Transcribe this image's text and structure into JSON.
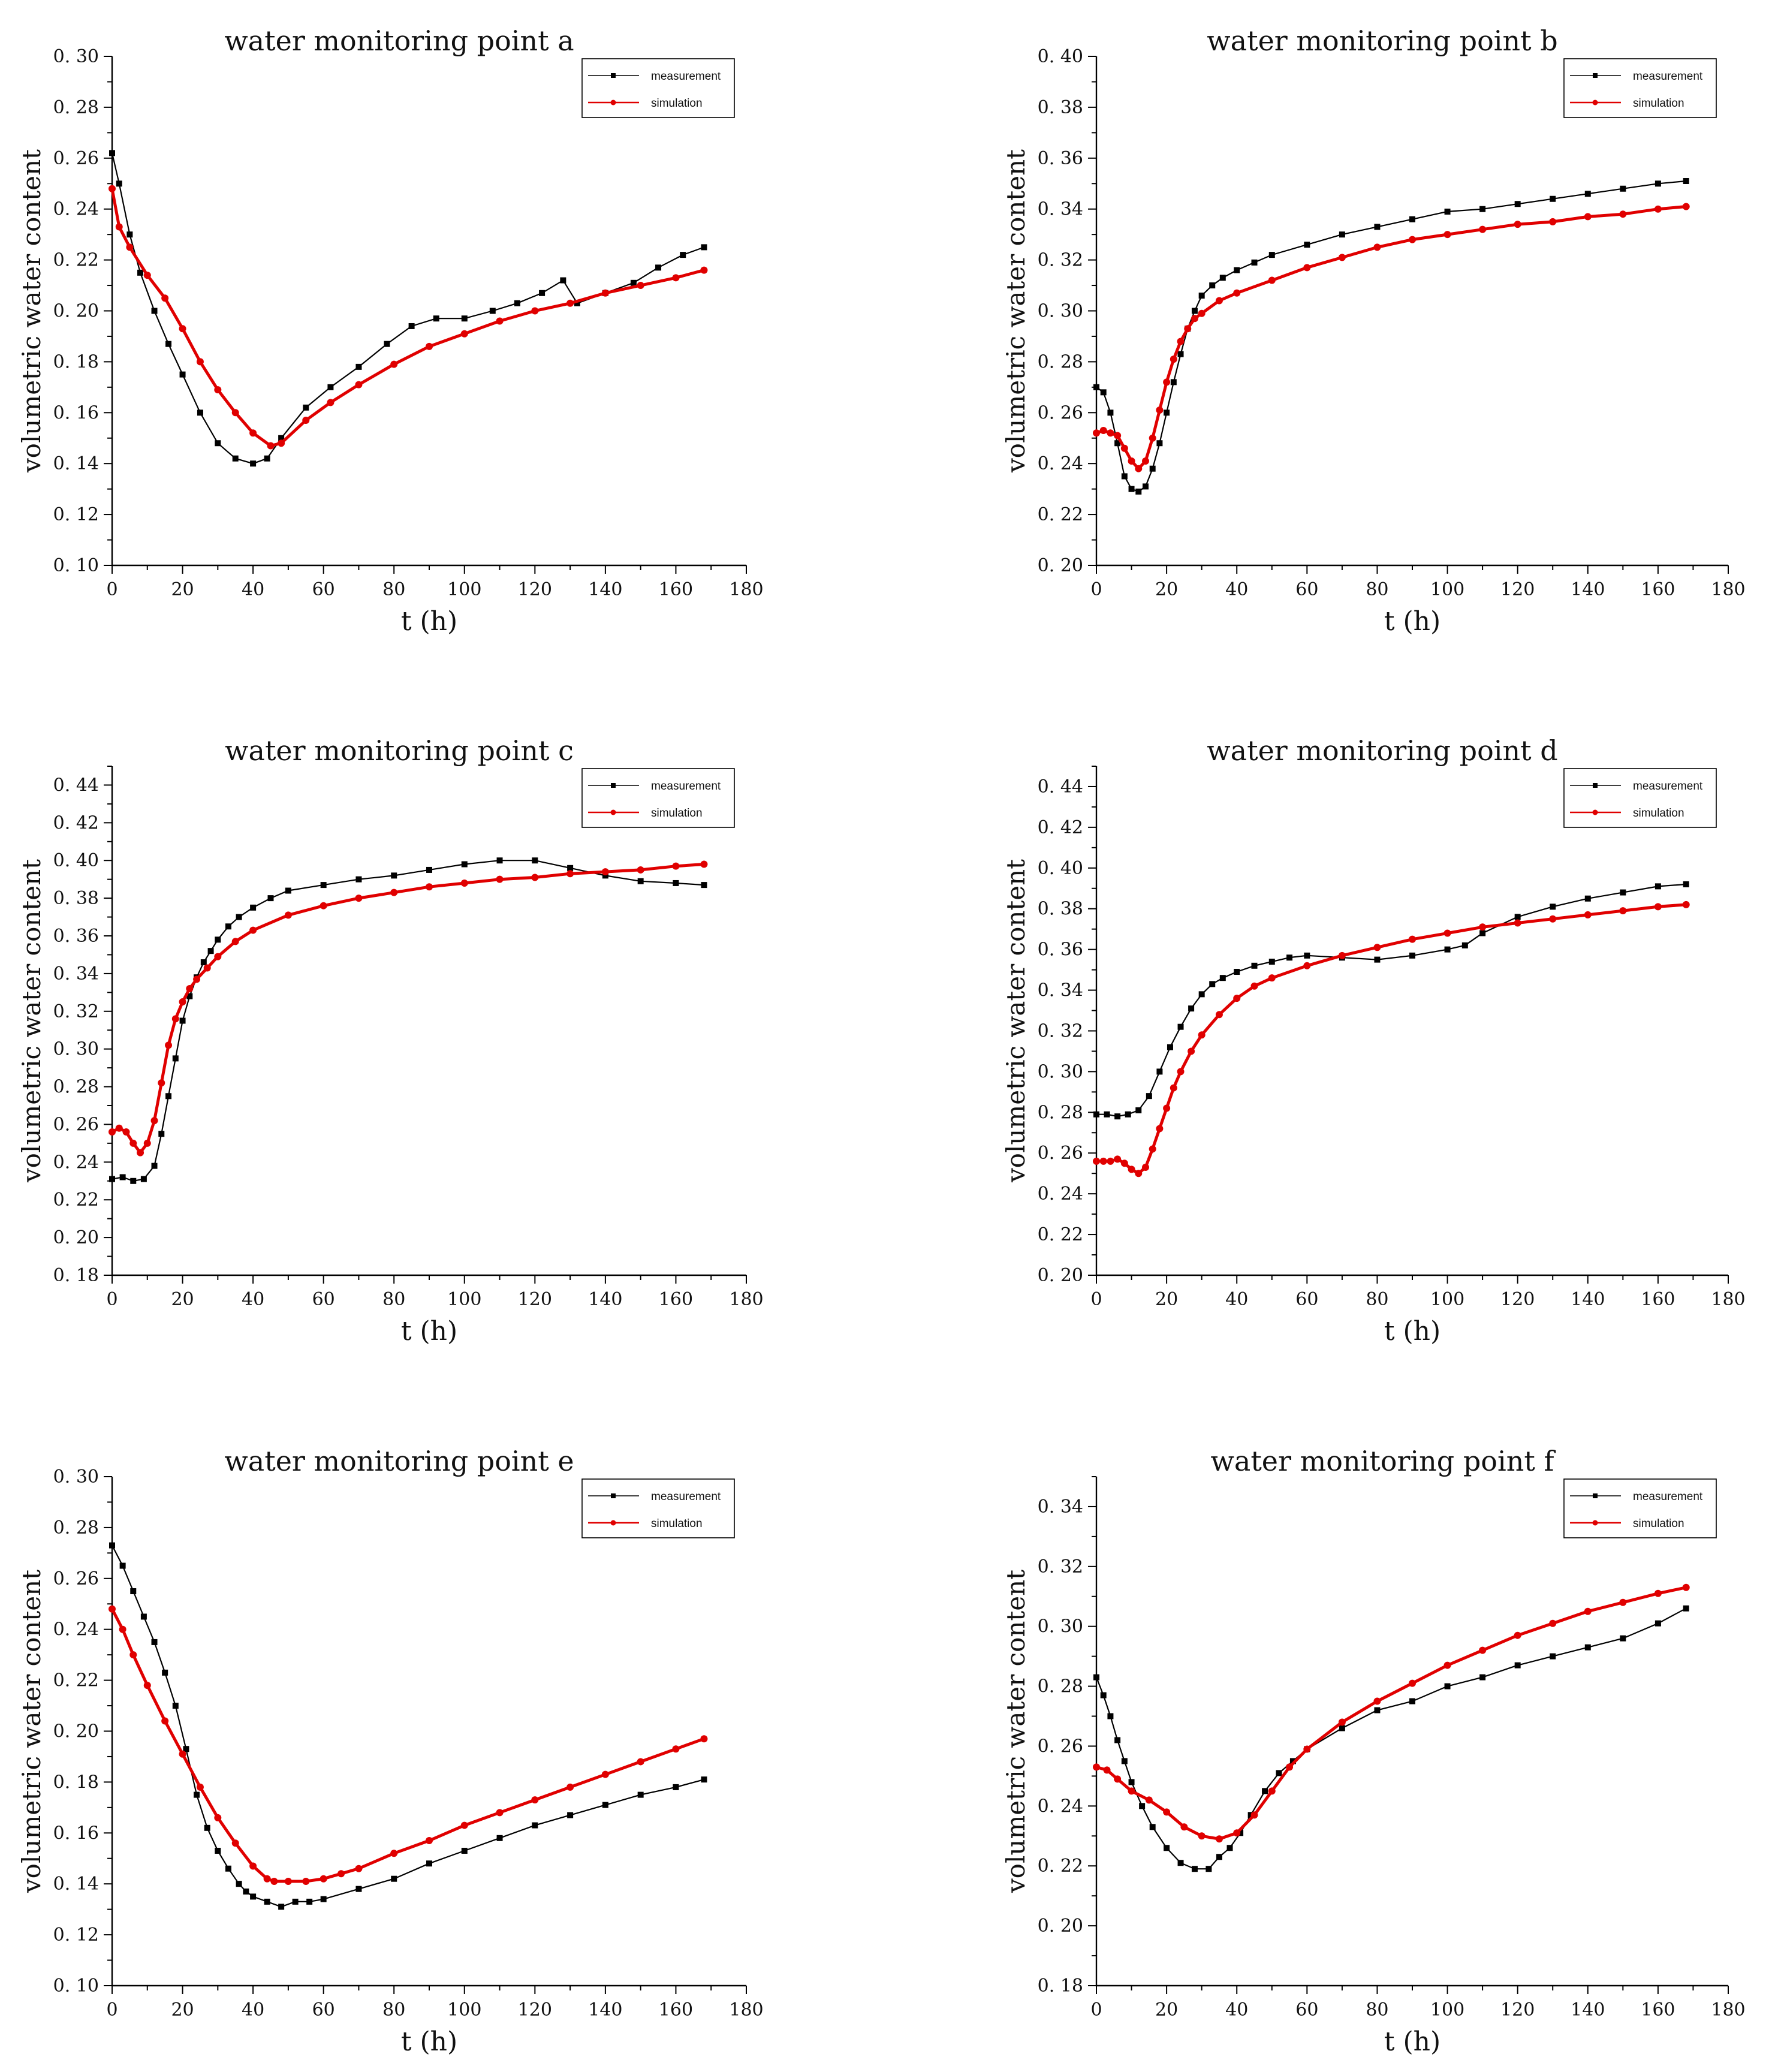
{
  "chart_data": [
    {
      "type": "line",
      "title": "water monitoring point a",
      "xlabel": "t (h)",
      "ylabel": "volumetric water content",
      "xlim": [
        0,
        180
      ],
      "ylim": [
        0.1,
        0.3
      ],
      "xticks": [
        "0",
        "20",
        "40",
        "60",
        "80",
        "100",
        "120",
        "140",
        "160",
        "180"
      ],
      "yticks": [
        "0. 10",
        "0. 12",
        "0. 14",
        "0. 16",
        "0. 18",
        "0. 20",
        "0. 22",
        "0. 24",
        "0. 26",
        "0. 28",
        "0. 30"
      ],
      "legend": "top-right",
      "series": [
        {
          "name": "measurement",
          "color": "#000000",
          "marker": "square",
          "x": [
            0,
            2,
            5,
            8,
            12,
            16,
            20,
            25,
            30,
            35,
            40,
            44,
            48,
            55,
            62,
            70,
            78,
            85,
            92,
            100,
            108,
            115,
            122,
            128,
            132,
            140,
            148,
            155,
            162,
            168
          ],
          "y": [
            0.262,
            0.25,
            0.23,
            0.215,
            0.2,
            0.187,
            0.175,
            0.16,
            0.148,
            0.142,
            0.14,
            0.142,
            0.15,
            0.162,
            0.17,
            0.178,
            0.187,
            0.194,
            0.197,
            0.197,
            0.2,
            0.203,
            0.207,
            0.212,
            0.203,
            0.207,
            0.211,
            0.217,
            0.222,
            0.225
          ]
        },
        {
          "name": "simulation",
          "color": "#e00000",
          "marker": "circle",
          "x": [
            0,
            2,
            5,
            10,
            15,
            20,
            25,
            30,
            35,
            40,
            45,
            48,
            55,
            62,
            70,
            80,
            90,
            100,
            110,
            120,
            130,
            140,
            150,
            160,
            168
          ],
          "y": [
            0.248,
            0.233,
            0.225,
            0.214,
            0.205,
            0.193,
            0.18,
            0.169,
            0.16,
            0.152,
            0.147,
            0.148,
            0.157,
            0.164,
            0.171,
            0.179,
            0.186,
            0.191,
            0.196,
            0.2,
            0.203,
            0.207,
            0.21,
            0.213,
            0.216
          ]
        }
      ]
    },
    {
      "type": "line",
      "title": "water monitoring point b",
      "xlabel": "t (h)",
      "ylabel": "volumetric water content",
      "xlim": [
        0,
        180
      ],
      "ylim": [
        0.2,
        0.4
      ],
      "xticks": [
        "0",
        "20",
        "40",
        "60",
        "80",
        "100",
        "120",
        "140",
        "160",
        "180"
      ],
      "yticks": [
        "0. 20",
        "0. 22",
        "0. 24",
        "0. 26",
        "0. 28",
        "0. 30",
        "0. 32",
        "0. 34",
        "0. 36",
        "0. 38",
        "0. 40"
      ],
      "legend": "top-right",
      "series": [
        {
          "name": "measurement",
          "color": "#000000",
          "marker": "square",
          "x": [
            0,
            2,
            4,
            6,
            8,
            10,
            12,
            14,
            16,
            18,
            20,
            22,
            24,
            26,
            28,
            30,
            33,
            36,
            40,
            45,
            50,
            60,
            70,
            80,
            90,
            100,
            110,
            120,
            130,
            140,
            150,
            160,
            168
          ],
          "y": [
            0.27,
            0.268,
            0.26,
            0.248,
            0.235,
            0.23,
            0.229,
            0.231,
            0.238,
            0.248,
            0.26,
            0.272,
            0.283,
            0.293,
            0.3,
            0.306,
            0.31,
            0.313,
            0.316,
            0.319,
            0.322,
            0.326,
            0.33,
            0.333,
            0.336,
            0.339,
            0.34,
            0.342,
            0.344,
            0.346,
            0.348,
            0.35,
            0.351
          ]
        },
        {
          "name": "simulation",
          "color": "#e00000",
          "marker": "circle",
          "x": [
            0,
            2,
            4,
            6,
            8,
            10,
            12,
            14,
            16,
            18,
            20,
            22,
            24,
            26,
            28,
            30,
            35,
            40,
            50,
            60,
            70,
            80,
            90,
            100,
            110,
            120,
            130,
            140,
            150,
            160,
            168
          ],
          "y": [
            0.252,
            0.253,
            0.252,
            0.251,
            0.246,
            0.241,
            0.238,
            0.241,
            0.25,
            0.261,
            0.272,
            0.281,
            0.288,
            0.293,
            0.297,
            0.299,
            0.304,
            0.307,
            0.312,
            0.317,
            0.321,
            0.325,
            0.328,
            0.33,
            0.332,
            0.334,
            0.335,
            0.337,
            0.338,
            0.34,
            0.341
          ]
        }
      ]
    },
    {
      "type": "line",
      "title": "water monitoring point c",
      "xlabel": "t (h)",
      "ylabel": "volumetric water content",
      "xlim": [
        0,
        180
      ],
      "ylim": [
        0.18,
        0.45
      ],
      "xticks": [
        "0",
        "20",
        "40",
        "60",
        "80",
        "100",
        "120",
        "140",
        "160",
        "180"
      ],
      "yticks": [
        "0. 18",
        "0. 20",
        "0. 22",
        "0. 24",
        "0. 26",
        "0. 28",
        "0. 30",
        "0. 32",
        "0. 34",
        "0. 36",
        "0. 38",
        "0. 40",
        "0. 42",
        "0. 44"
      ],
      "legend": "top-right",
      "series": [
        {
          "name": "measurement",
          "color": "#000000",
          "marker": "square",
          "x": [
            0,
            3,
            6,
            9,
            12,
            14,
            16,
            18,
            20,
            22,
            24,
            26,
            28,
            30,
            33,
            36,
            40,
            45,
            50,
            60,
            70,
            80,
            90,
            100,
            110,
            120,
            130,
            140,
            150,
            160,
            168
          ],
          "y": [
            0.231,
            0.232,
            0.23,
            0.231,
            0.238,
            0.255,
            0.275,
            0.295,
            0.315,
            0.328,
            0.338,
            0.346,
            0.352,
            0.358,
            0.365,
            0.37,
            0.375,
            0.38,
            0.384,
            0.387,
            0.39,
            0.392,
            0.395,
            0.398,
            0.4,
            0.4,
            0.396,
            0.392,
            0.389,
            0.388,
            0.387
          ]
        },
        {
          "name": "simulation",
          "color": "#e00000",
          "marker": "circle",
          "x": [
            0,
            2,
            4,
            6,
            8,
            10,
            12,
            14,
            16,
            18,
            20,
            22,
            24,
            27,
            30,
            35,
            40,
            50,
            60,
            70,
            80,
            90,
            100,
            110,
            120,
            130,
            140,
            150,
            160,
            168
          ],
          "y": [
            0.256,
            0.258,
            0.256,
            0.25,
            0.245,
            0.25,
            0.262,
            0.282,
            0.302,
            0.316,
            0.325,
            0.332,
            0.337,
            0.343,
            0.349,
            0.357,
            0.363,
            0.371,
            0.376,
            0.38,
            0.383,
            0.386,
            0.388,
            0.39,
            0.391,
            0.393,
            0.394,
            0.395,
            0.397,
            0.398
          ]
        }
      ]
    },
    {
      "type": "line",
      "title": "water monitoring point d",
      "xlabel": "t (h)",
      "ylabel": "volumetric water content",
      "xlim": [
        0,
        180
      ],
      "ylim": [
        0.2,
        0.45
      ],
      "xticks": [
        "0",
        "20",
        "40",
        "60",
        "80",
        "100",
        "120",
        "140",
        "160",
        "180"
      ],
      "yticks": [
        "0. 20",
        "0. 22",
        "0. 24",
        "0. 26",
        "0. 28",
        "0. 30",
        "0. 32",
        "0. 34",
        "0. 36",
        "0. 38",
        "0. 40",
        "0. 42",
        "0. 44"
      ],
      "legend": "top-right",
      "series": [
        {
          "name": "measurement",
          "color": "#000000",
          "marker": "square",
          "x": [
            0,
            3,
            6,
            9,
            12,
            15,
            18,
            21,
            24,
            27,
            30,
            33,
            36,
            40,
            45,
            50,
            55,
            60,
            70,
            80,
            90,
            100,
            105,
            110,
            120,
            130,
            140,
            150,
            160,
            168
          ],
          "y": [
            0.279,
            0.279,
            0.278,
            0.279,
            0.281,
            0.288,
            0.3,
            0.312,
            0.322,
            0.331,
            0.338,
            0.343,
            0.346,
            0.349,
            0.352,
            0.354,
            0.356,
            0.357,
            0.356,
            0.355,
            0.357,
            0.36,
            0.362,
            0.368,
            0.376,
            0.381,
            0.385,
            0.388,
            0.391,
            0.392
          ]
        },
        {
          "name": "simulation",
          "color": "#e00000",
          "marker": "circle",
          "x": [
            0,
            2,
            4,
            6,
            8,
            10,
            12,
            14,
            16,
            18,
            20,
            22,
            24,
            27,
            30,
            35,
            40,
            45,
            50,
            60,
            70,
            80,
            90,
            100,
            110,
            120,
            130,
            140,
            150,
            160,
            168
          ],
          "y": [
            0.256,
            0.256,
            0.256,
            0.257,
            0.255,
            0.252,
            0.25,
            0.253,
            0.262,
            0.272,
            0.282,
            0.292,
            0.3,
            0.31,
            0.318,
            0.328,
            0.336,
            0.342,
            0.346,
            0.352,
            0.357,
            0.361,
            0.365,
            0.368,
            0.371,
            0.373,
            0.375,
            0.377,
            0.379,
            0.381,
            0.382
          ]
        }
      ]
    },
    {
      "type": "line",
      "title": "water monitoring point e",
      "xlabel": "t (h)",
      "ylabel": "volumetric water content",
      "xlim": [
        0,
        180
      ],
      "ylim": [
        0.1,
        0.3
      ],
      "xticks": [
        "0",
        "20",
        "40",
        "60",
        "80",
        "100",
        "120",
        "140",
        "160",
        "180"
      ],
      "yticks": [
        "0. 10",
        "0. 12",
        "0. 14",
        "0. 16",
        "0. 18",
        "0. 20",
        "0. 22",
        "0. 24",
        "0. 26",
        "0. 28",
        "0. 30"
      ],
      "legend": "top-right",
      "series": [
        {
          "name": "measurement",
          "color": "#000000",
          "marker": "square",
          "x": [
            0,
            3,
            6,
            9,
            12,
            15,
            18,
            21,
            24,
            27,
            30,
            33,
            36,
            38,
            40,
            44,
            48,
            52,
            56,
            60,
            70,
            80,
            90,
            100,
            110,
            120,
            130,
            140,
            150,
            160,
            168
          ],
          "y": [
            0.273,
            0.265,
            0.255,
            0.245,
            0.235,
            0.223,
            0.21,
            0.193,
            0.175,
            0.162,
            0.153,
            0.146,
            0.14,
            0.137,
            0.135,
            0.133,
            0.131,
            0.133,
            0.133,
            0.134,
            0.138,
            0.142,
            0.148,
            0.153,
            0.158,
            0.163,
            0.167,
            0.171,
            0.175,
            0.178,
            0.181
          ]
        },
        {
          "name": "simulation",
          "color": "#e00000",
          "marker": "circle",
          "x": [
            0,
            3,
            6,
            10,
            15,
            20,
            25,
            30,
            35,
            40,
            44,
            46,
            50,
            55,
            60,
            65,
            70,
            80,
            90,
            100,
            110,
            120,
            130,
            140,
            150,
            160,
            168
          ],
          "y": [
            0.248,
            0.24,
            0.23,
            0.218,
            0.204,
            0.191,
            0.178,
            0.166,
            0.156,
            0.147,
            0.142,
            0.141,
            0.141,
            0.141,
            0.142,
            0.144,
            0.146,
            0.152,
            0.157,
            0.163,
            0.168,
            0.173,
            0.178,
            0.183,
            0.188,
            0.193,
            0.197
          ]
        }
      ]
    },
    {
      "type": "line",
      "title": "water monitoring point f",
      "xlabel": "t (h)",
      "ylabel": "volumetric water content",
      "xlim": [
        0,
        180
      ],
      "ylim": [
        0.18,
        0.35
      ],
      "xticks": [
        "0",
        "20",
        "40",
        "60",
        "80",
        "100",
        "120",
        "140",
        "160",
        "180"
      ],
      "yticks": [
        "0. 18",
        "0. 20",
        "0. 22",
        "0. 24",
        "0. 26",
        "0. 28",
        "0. 30",
        "0. 32",
        "0. 34"
      ],
      "legend": "top-right",
      "series": [
        {
          "name": "measurement",
          "color": "#000000",
          "marker": "square",
          "x": [
            0,
            2,
            4,
            6,
            8,
            10,
            13,
            16,
            20,
            24,
            28,
            32,
            35,
            38,
            41,
            44,
            48,
            52,
            56,
            60,
            70,
            80,
            90,
            100,
            110,
            120,
            130,
            140,
            150,
            160,
            168
          ],
          "y": [
            0.283,
            0.277,
            0.27,
            0.262,
            0.255,
            0.248,
            0.24,
            0.233,
            0.226,
            0.221,
            0.219,
            0.219,
            0.223,
            0.226,
            0.231,
            0.237,
            0.245,
            0.251,
            0.255,
            0.259,
            0.266,
            0.272,
            0.275,
            0.28,
            0.283,
            0.287,
            0.29,
            0.293,
            0.296,
            0.301,
            0.306
          ]
        },
        {
          "name": "simulation",
          "color": "#e00000",
          "marker": "circle",
          "x": [
            0,
            3,
            6,
            10,
            15,
            20,
            25,
            30,
            35,
            40,
            45,
            50,
            55,
            60,
            70,
            80,
            90,
            100,
            110,
            120,
            130,
            140,
            150,
            160,
            168
          ],
          "y": [
            0.253,
            0.252,
            0.249,
            0.245,
            0.242,
            0.238,
            0.233,
            0.23,
            0.229,
            0.231,
            0.237,
            0.245,
            0.253,
            0.259,
            0.268,
            0.275,
            0.281,
            0.287,
            0.292,
            0.297,
            0.301,
            0.305,
            0.308,
            0.311,
            0.313
          ]
        }
      ]
    }
  ]
}
